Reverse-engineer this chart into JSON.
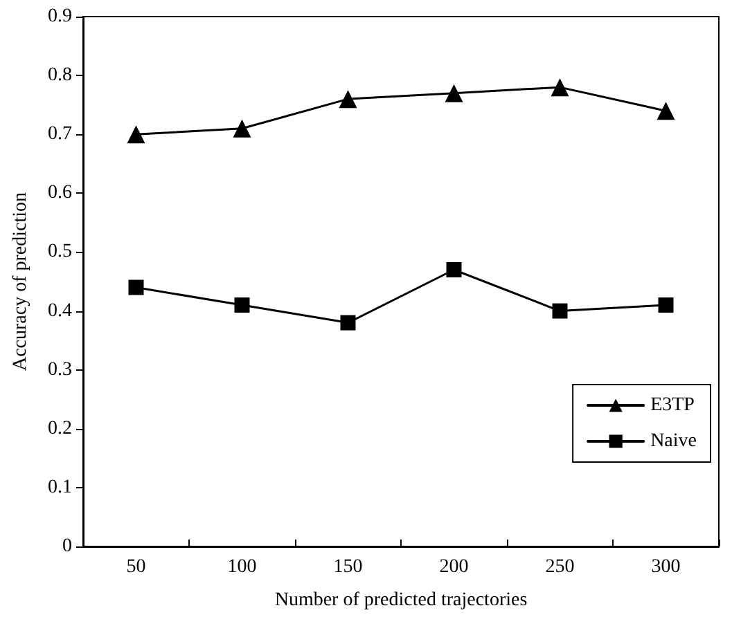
{
  "chart_data": {
    "type": "line",
    "xlabel": "Number of predicted trajectories",
    "ylabel": "Accuracy of prediction",
    "categories": [
      "50",
      "100",
      "150",
      "200",
      "250",
      "300"
    ],
    "series": [
      {
        "name": "E3TP",
        "color": "#000000",
        "marker": "triangle",
        "values": [
          0.7,
          0.71,
          0.76,
          0.77,
          0.78,
          0.74
        ]
      },
      {
        "name": "Naive",
        "color": "#000000",
        "marker": "square",
        "values": [
          0.44,
          0.41,
          0.38,
          0.47,
          0.4,
          0.41
        ]
      }
    ],
    "ylim": [
      0,
      0.9
    ],
    "yticks": [
      0,
      0.1,
      0.2,
      0.3,
      0.4,
      0.5,
      0.6,
      0.7,
      0.8,
      0.9
    ],
    "grid": false,
    "legend": "bottom right",
    "line_style": "solid"
  }
}
